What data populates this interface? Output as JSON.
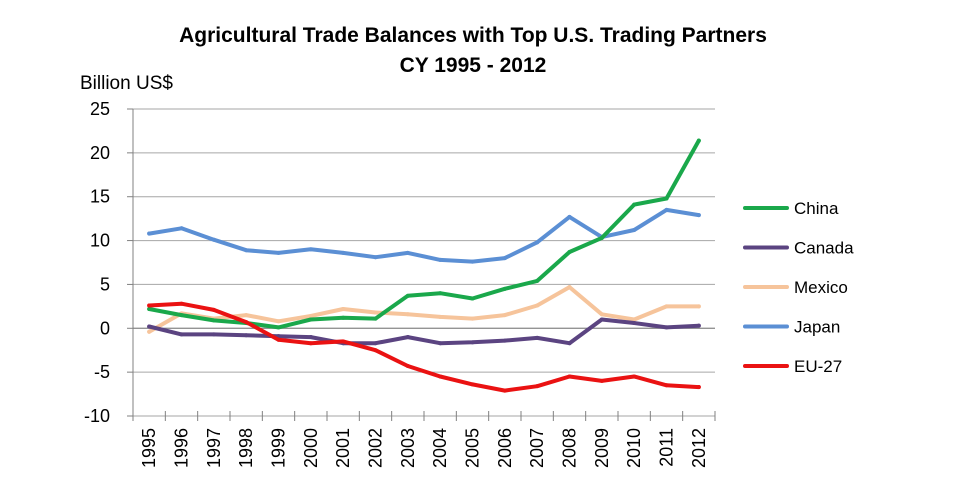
{
  "chart_data": {
    "type": "line",
    "title": "Agricultural Trade Balances with Top U.S. Trading Partners",
    "subtitle": "CY 1995 - 2012",
    "ylabel": "Billion US$",
    "xlabel": "",
    "ylim": [
      -10,
      25
    ],
    "yticks": [
      25,
      20,
      15,
      10,
      5,
      0,
      -5,
      -10
    ],
    "ytick_labels": [
      "25",
      "20",
      "15",
      "10",
      "5",
      "0",
      "-5",
      "-10"
    ],
    "grid": true,
    "legend_position": "right",
    "categories": [
      "1995",
      "1996",
      "1997",
      "1998",
      "1999",
      "2000",
      "2001",
      "2002",
      "2003",
      "2004",
      "2005",
      "2006",
      "2007",
      "2008",
      "2009",
      "2010",
      "2011",
      "2012"
    ],
    "series": [
      {
        "name": "China",
        "color": "#1aa84b",
        "values": [
          2.2,
          1.5,
          0.9,
          0.6,
          0.1,
          1.0,
          1.2,
          1.1,
          3.7,
          4.0,
          3.4,
          4.5,
          5.4,
          8.7,
          10.3,
          14.1,
          14.8,
          21.4
        ]
      },
      {
        "name": "Canada",
        "color": "#5b4481",
        "values": [
          0.2,
          -0.7,
          -0.7,
          -0.8,
          -0.9,
          -1.0,
          -1.7,
          -1.7,
          -1.0,
          -1.7,
          -1.6,
          -1.4,
          -1.1,
          -1.7,
          1.0,
          0.6,
          0.1,
          0.3
        ]
      },
      {
        "name": "Mexico",
        "color": "#f6c49b",
        "values": [
          -0.4,
          1.7,
          1.1,
          1.5,
          0.8,
          1.4,
          2.2,
          1.8,
          1.6,
          1.3,
          1.1,
          1.5,
          2.6,
          4.7,
          1.6,
          1.0,
          2.5,
          2.5
        ]
      },
      {
        "name": "Japan",
        "color": "#5b8fd4",
        "values": [
          10.8,
          11.4,
          10.1,
          8.9,
          8.6,
          9.0,
          8.6,
          8.1,
          8.6,
          7.8,
          7.6,
          8.0,
          9.8,
          12.7,
          10.4,
          11.2,
          13.5,
          12.9
        ]
      },
      {
        "name": "EU-27",
        "color": "#ea1212",
        "values": [
          2.6,
          2.8,
          2.1,
          0.7,
          -1.3,
          -1.7,
          -1.5,
          -2.5,
          -4.3,
          -5.5,
          -6.4,
          -7.1,
          -6.6,
          -5.5,
          -6.0,
          -5.5,
          -6.5,
          -6.7
        ]
      }
    ]
  }
}
